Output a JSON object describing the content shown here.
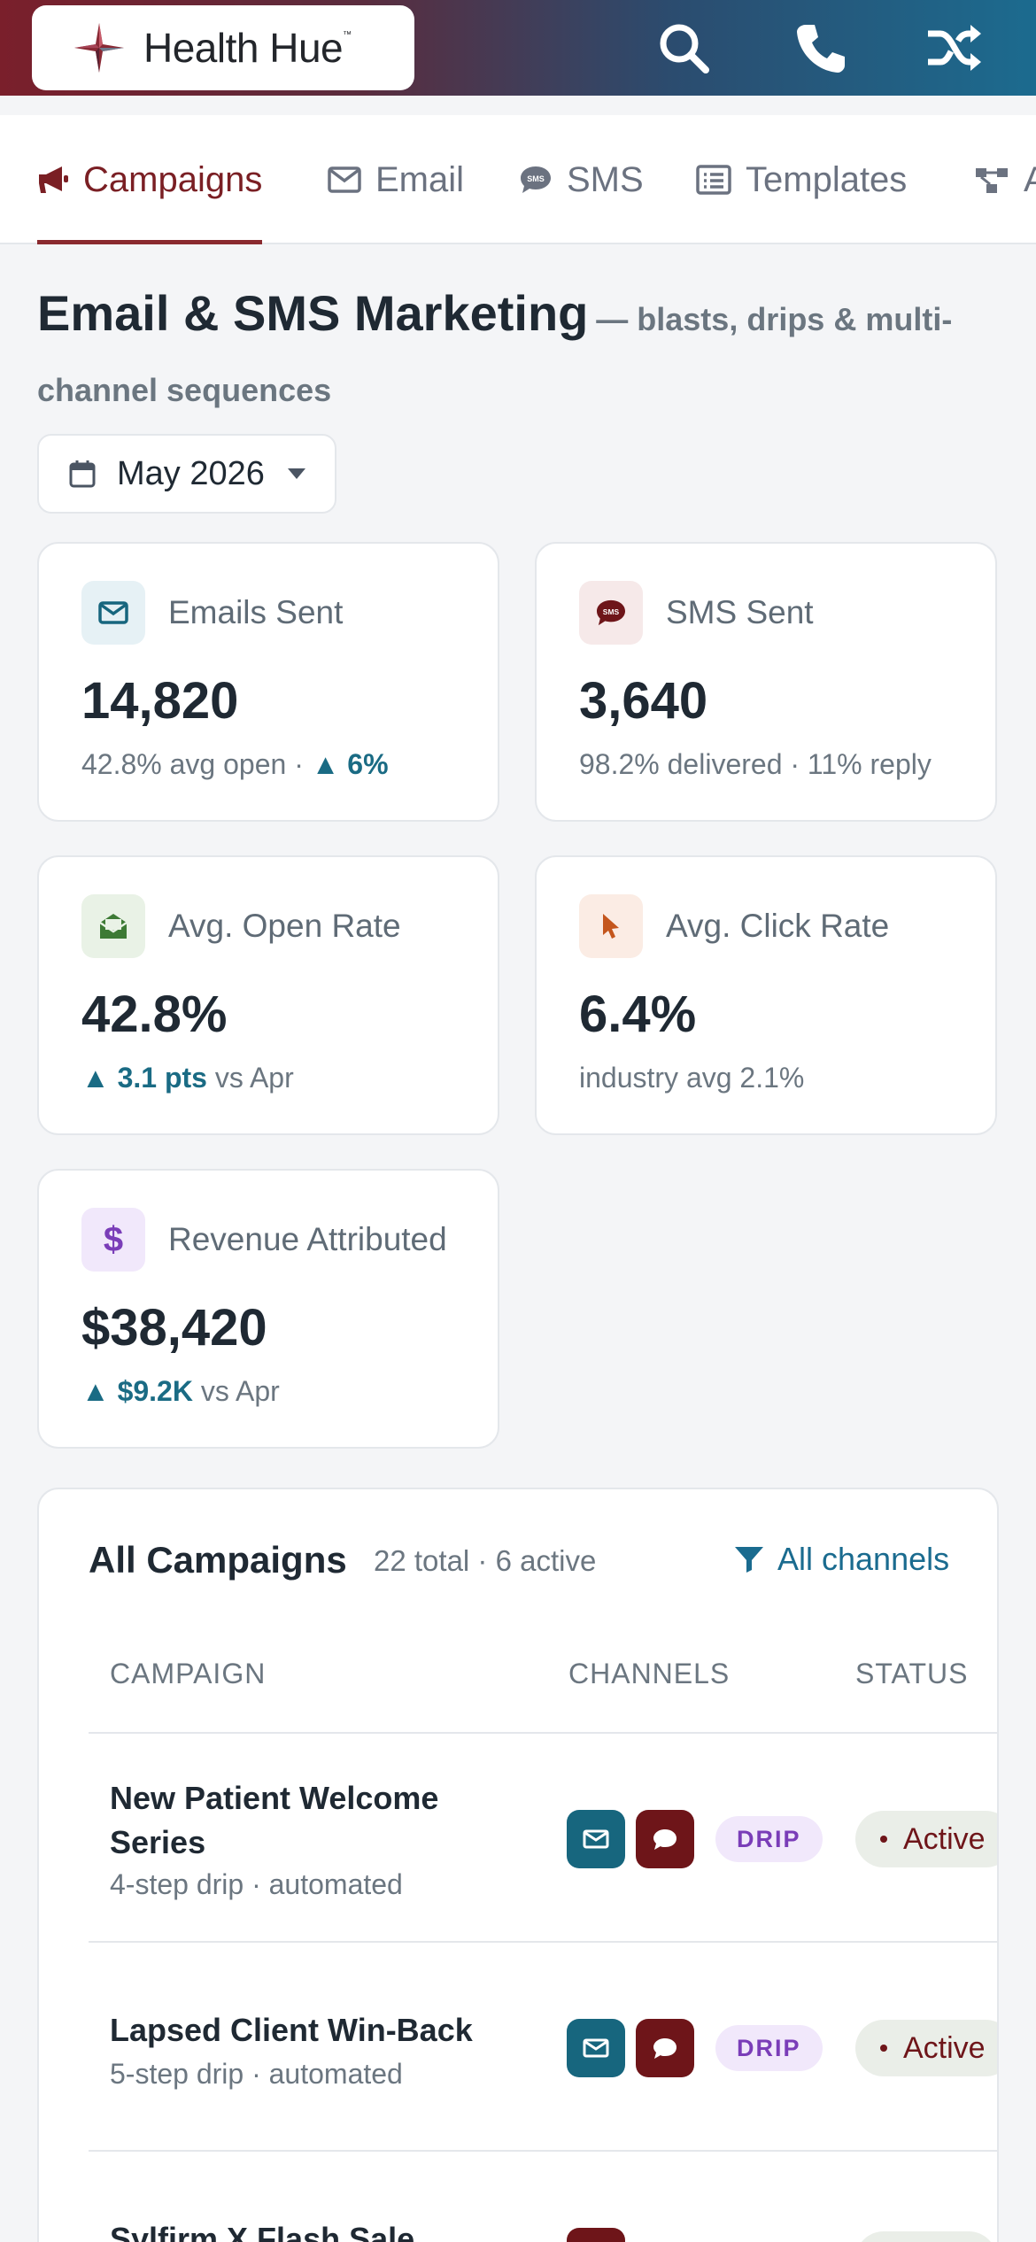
{
  "header": {
    "brand": "Health Hue",
    "brand_tm": "™",
    "icons": [
      "search-icon",
      "phone-icon",
      "shuffle-icon"
    ]
  },
  "tabs": [
    {
      "label": "Campaigns",
      "icon": "megaphone-icon",
      "active": true
    },
    {
      "label": "Email",
      "icon": "envelope-icon"
    },
    {
      "label": "SMS",
      "icon": "sms-bubble-icon"
    },
    {
      "label": "Templates",
      "icon": "list-icon"
    },
    {
      "label": "A",
      "icon": "flow-icon"
    }
  ],
  "page": {
    "title": "Email & SMS Marketing",
    "subtitle": "— blasts, drips & multi-channel sequences",
    "month": "May 2026"
  },
  "stats": {
    "emails": {
      "label": "Emails Sent",
      "value": "14,820",
      "note": "42.8% avg open · ",
      "delta": "▲ 6%"
    },
    "sms": {
      "label": "SMS Sent",
      "value": "3,640",
      "note": "98.2% delivered · 11% reply"
    },
    "open": {
      "label": "Avg. Open Rate",
      "value": "42.8%",
      "delta": "▲ 3.1 pts",
      "note": " vs Apr"
    },
    "click": {
      "label": "Avg. Click Rate",
      "value": "6.4%",
      "note": "industry avg 2.1%"
    },
    "revenue": {
      "label": "Revenue Attributed",
      "value": "$38,420",
      "delta": "▲ $9.2K",
      "note": " vs Apr"
    }
  },
  "campaigns": {
    "title": "All Campaigns",
    "count": "22 total · 6 active",
    "filter": "All channels",
    "columns": [
      "CAMPAIGN",
      "CHANNELS",
      "STATUS"
    ],
    "rows": [
      {
        "name": "New Patient Welcome Series",
        "sub": "4-step drip · automated",
        "badge": "DRIP",
        "status": "Active"
      },
      {
        "name": "Lapsed Client Win-Back",
        "sub": "5-step drip · automated",
        "badge": "DRIP",
        "status": "Active"
      },
      {
        "name": "Sylfirm X Flash Sale"
      }
    ]
  },
  "colors": {
    "brand_red": "#7a1f24",
    "email_channel": "#17667e",
    "sms_channel": "#6e1519",
    "accent_teal": "#1a6b84"
  }
}
